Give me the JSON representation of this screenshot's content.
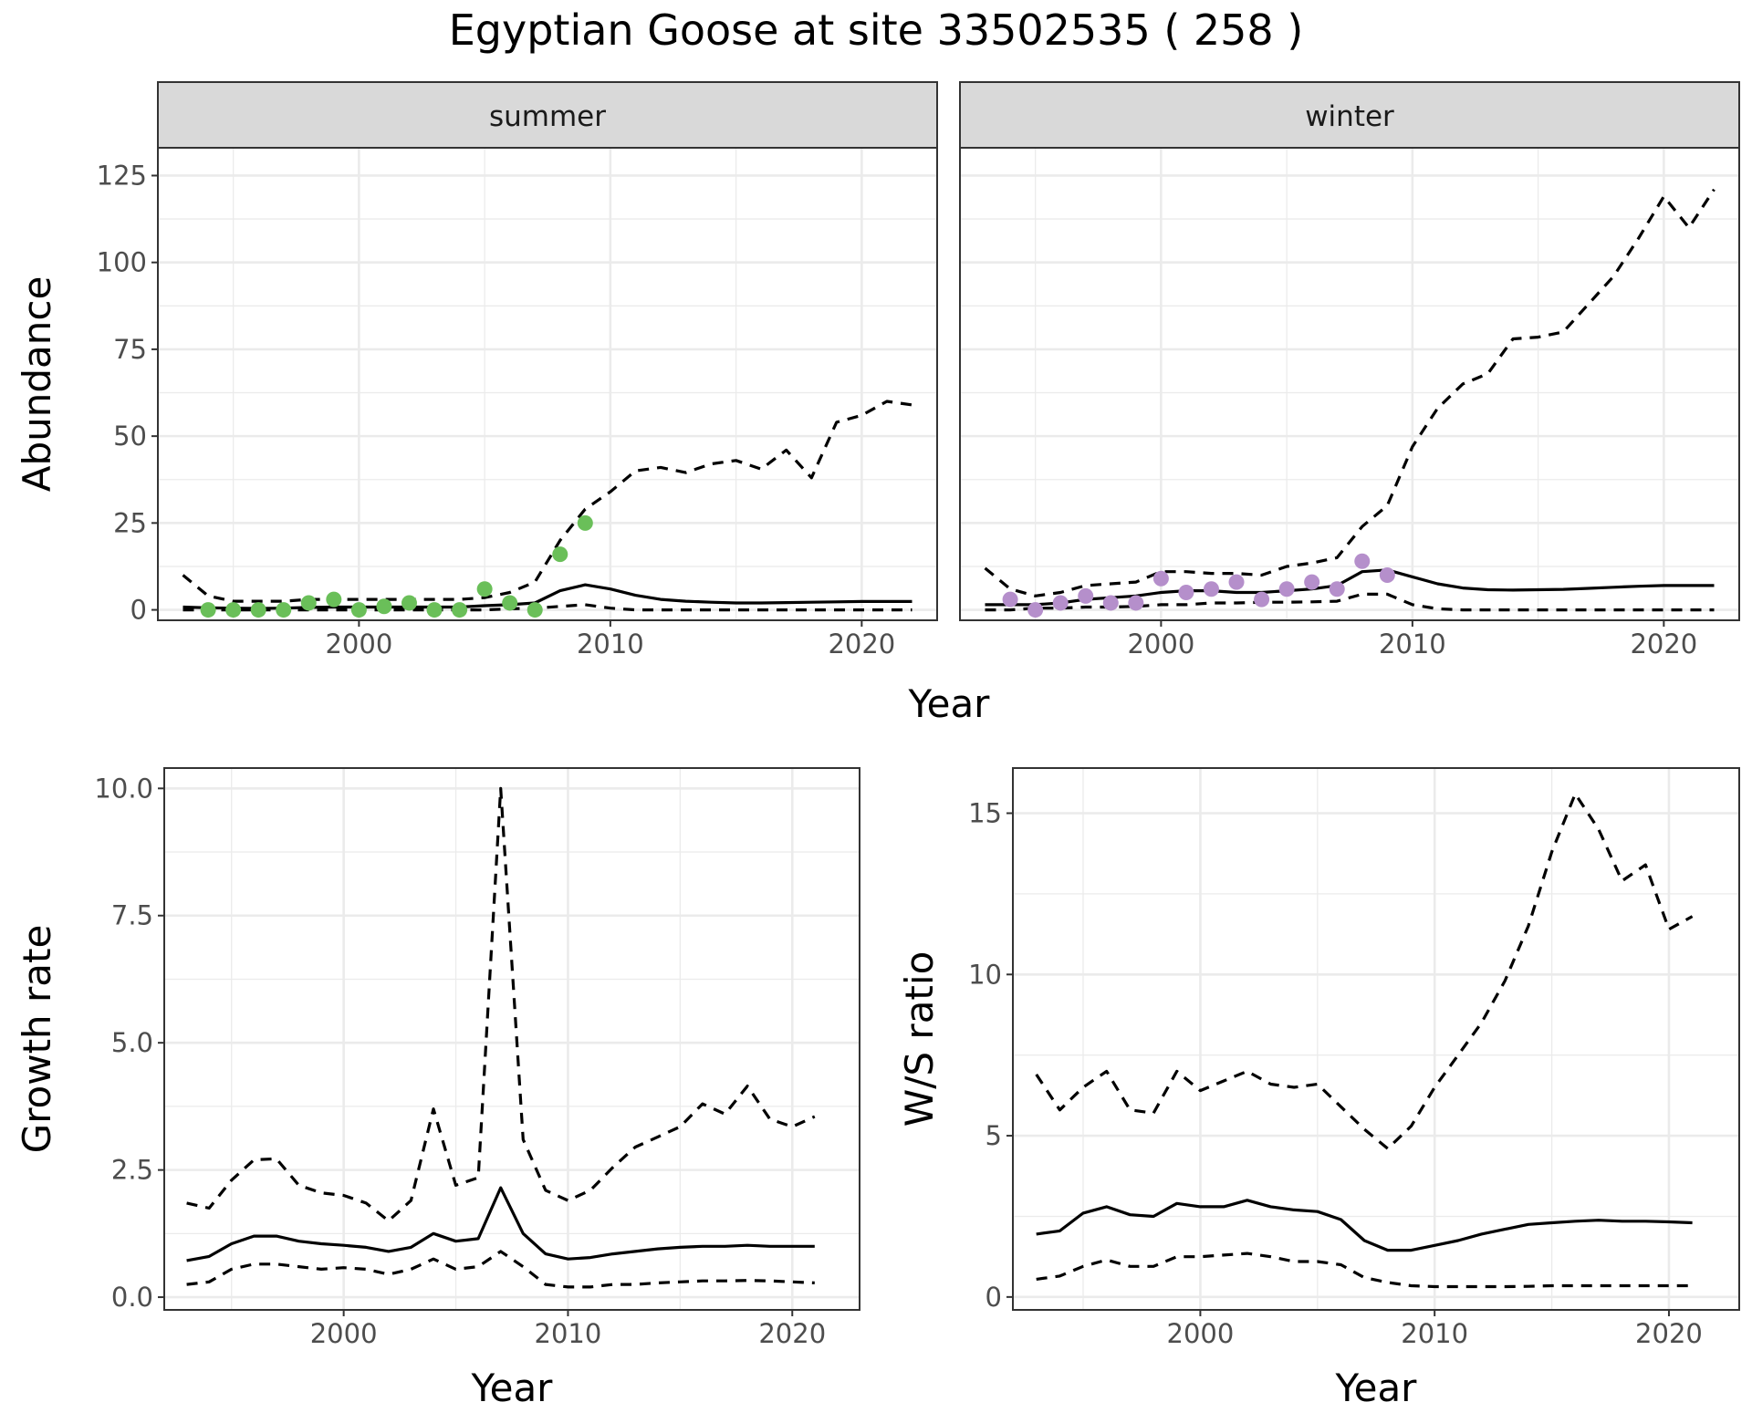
{
  "title": "Egyptian Goose at site 33502535 ( 258 )",
  "colors": {
    "summer_points": "#6abf59",
    "winter_points": "#b58fcb",
    "strip_fill": "#d9d9d9",
    "grid": "#ebebeb",
    "line": "#000000"
  },
  "chart_data": [
    {
      "id": "abundance",
      "type": "line",
      "facets": [
        "summer",
        "winter"
      ],
      "xlabel": "Year",
      "ylabel": "Abundance",
      "xlim": [
        1992,
        2023
      ],
      "ylim": [
        -3,
        133
      ],
      "xticks": [
        2000,
        2010,
        2020
      ],
      "yticks": [
        0,
        25,
        50,
        75,
        100,
        125
      ],
      "grid": true,
      "panels": [
        {
          "facet": "summer",
          "point_color": "#6abf59",
          "points": {
            "x": [
              1994,
              1995,
              1996,
              1997,
              1998,
              1999,
              2000,
              2001,
              2002,
              2003,
              2004,
              2005,
              2006,
              2007,
              2008,
              2009
            ],
            "y": [
              0,
              0,
              0,
              0,
              2,
              3,
              0,
              1,
              2,
              0,
              0,
              6,
              2,
              0,
              16,
              25
            ]
          },
          "series": [
            {
              "role": "estimate",
              "style": "solid",
              "x": [
                1993,
                1994,
                1995,
                1996,
                1997,
                1998,
                1999,
                2000,
                2001,
                2002,
                2003,
                2004,
                2005,
                2006,
                2007,
                2008,
                2009,
                2010,
                2011,
                2012,
                2013,
                2014,
                2015,
                2016,
                2017,
                2018,
                2019,
                2020,
                2021,
                2022
              ],
              "y": [
                0.8,
                0.6,
                0.5,
                0.4,
                0.5,
                0.7,
                0.8,
                0.8,
                0.8,
                0.8,
                0.8,
                0.8,
                1.2,
                1.5,
                2.0,
                5.5,
                7.2,
                6.0,
                4.2,
                3.0,
                2.5,
                2.2,
                2.0,
                2.0,
                2.1,
                2.2,
                2.3,
                2.4,
                2.4,
                2.4
              ]
            },
            {
              "role": "upper",
              "style": "dashed",
              "x": [
                1993,
                1994,
                1995,
                1996,
                1997,
                1998,
                1999,
                2000,
                2001,
                2002,
                2003,
                2004,
                2005,
                2006,
                2007,
                2008,
                2009,
                2010,
                2011,
                2012,
                2013,
                2014,
                2015,
                2016,
                2017,
                2018,
                2019,
                2020,
                2021,
                2022
              ],
              "y": [
                10,
                4,
                2.5,
                2.5,
                2.5,
                3,
                3,
                3,
                3,
                3,
                3,
                3,
                3.5,
                5,
                8,
                20,
                29,
                34,
                40,
                41,
                39.5,
                42,
                43,
                40.5,
                46,
                38,
                54,
                56,
                60,
                59
              ]
            },
            {
              "role": "lower",
              "style": "dashed",
              "x": [
                1993,
                1994,
                1995,
                1996,
                1997,
                1998,
                1999,
                2000,
                2001,
                2002,
                2003,
                2004,
                2005,
                2006,
                2007,
                2008,
                2009,
                2010,
                2011,
                2012,
                2013,
                2014,
                2015,
                2016,
                2017,
                2018,
                2019,
                2020,
                2021,
                2022
              ],
              "y": [
                0,
                0,
                0,
                0,
                0,
                0,
                0,
                0,
                0,
                0,
                0,
                0,
                0,
                0.3,
                0.5,
                1.0,
                1.5,
                0.5,
                0,
                0,
                0,
                0,
                0,
                0,
                0,
                0,
                0,
                0,
                0,
                0
              ]
            }
          ]
        },
        {
          "facet": "winter",
          "point_color": "#b58fcb",
          "points": {
            "x": [
              1994,
              1995,
              1996,
              1997,
              1998,
              1999,
              2000,
              2001,
              2002,
              2003,
              2004,
              2005,
              2006,
              2007,
              2008,
              2009
            ],
            "y": [
              3,
              0,
              2,
              4,
              2,
              2,
              9,
              5,
              6,
              8,
              3,
              6,
              8,
              6,
              14,
              10
            ]
          },
          "series": [
            {
              "role": "estimate",
              "style": "solid",
              "x": [
                1993,
                1994,
                1995,
                1996,
                1997,
                1998,
                1999,
                2000,
                2001,
                2002,
                2003,
                2004,
                2005,
                2006,
                2007,
                2008,
                2009,
                2010,
                2011,
                2012,
                2013,
                2014,
                2015,
                2016,
                2017,
                2018,
                2019,
                2020,
                2021,
                2022
              ],
              "y": [
                1.5,
                1.5,
                1.5,
                2,
                3,
                3.5,
                4,
                5,
                5.5,
                5.5,
                5,
                5,
                5.5,
                6,
                7,
                11,
                11.5,
                9.5,
                7.5,
                6.3,
                5.8,
                5.7,
                5.8,
                5.9,
                6.2,
                6.5,
                6.8,
                7,
                7,
                7
              ]
            },
            {
              "role": "upper",
              "style": "dashed",
              "x": [
                1993,
                1994,
                1995,
                1996,
                1997,
                1998,
                1999,
                2000,
                2001,
                2002,
                2003,
                2004,
                2005,
                2006,
                2007,
                2008,
                2009,
                2010,
                2011,
                2012,
                2013,
                2014,
                2015,
                2016,
                2017,
                2018,
                2019,
                2020,
                2021,
                2022
              ],
              "y": [
                12,
                6,
                4,
                5,
                7,
                7.5,
                8,
                11,
                11,
                10.5,
                10.5,
                10,
                12.5,
                13.5,
                15,
                24,
                30,
                47,
                58,
                65,
                68,
                78,
                78.5,
                80,
                88,
                96,
                107,
                119,
                110,
                121
              ]
            },
            {
              "role": "lower",
              "style": "dashed",
              "x": [
                1993,
                1994,
                1995,
                1996,
                1997,
                1998,
                1999,
                2000,
                2001,
                2002,
                2003,
                2004,
                2005,
                2006,
                2007,
                2008,
                2009,
                2010,
                2011,
                2012,
                2013,
                2014,
                2015,
                2016,
                2017,
                2018,
                2019,
                2020,
                2021,
                2022
              ],
              "y": [
                0,
                0,
                0.5,
                0.5,
                0.8,
                0.8,
                1,
                1.5,
                1.5,
                2,
                2,
                2.2,
                2.2,
                2.3,
                2.5,
                4.5,
                4.5,
                1.5,
                0.3,
                0,
                0,
                0,
                0,
                0,
                0,
                0,
                0,
                0,
                0,
                0
              ]
            }
          ]
        }
      ]
    },
    {
      "id": "growth",
      "type": "line",
      "xlabel": "Year",
      "ylabel": "Growth rate",
      "xlim": [
        1992,
        2023
      ],
      "ylim": [
        -0.25,
        10.4
      ],
      "xticks": [
        2000,
        2010,
        2020
      ],
      "yticks": [
        0.0,
        2.5,
        5.0,
        7.5,
        10.0
      ],
      "ytick_labels": [
        "0.0",
        "2.5",
        "5.0",
        "7.5",
        "10.0"
      ],
      "grid": true,
      "series": [
        {
          "role": "estimate",
          "style": "solid",
          "x": [
            1993,
            1994,
            1995,
            1996,
            1997,
            1998,
            1999,
            2000,
            2001,
            2002,
            2003,
            2004,
            2005,
            2006,
            2007,
            2008,
            2009,
            2010,
            2011,
            2012,
            2013,
            2014,
            2015,
            2016,
            2017,
            2018,
            2019,
            2020,
            2021
          ],
          "y": [
            0.72,
            0.8,
            1.05,
            1.2,
            1.2,
            1.1,
            1.05,
            1.02,
            0.98,
            0.9,
            0.98,
            1.25,
            1.1,
            1.15,
            2.15,
            1.25,
            0.85,
            0.75,
            0.78,
            0.85,
            0.9,
            0.95,
            0.98,
            1.0,
            1.0,
            1.02,
            1.0,
            1.0,
            1.0
          ]
        },
        {
          "role": "upper",
          "style": "dashed",
          "x": [
            1993,
            1994,
            1995,
            1996,
            1997,
            1998,
            1999,
            2000,
            2001,
            2002,
            2003,
            2004,
            2005,
            2006,
            2007,
            2008,
            2009,
            2010,
            2011,
            2012,
            2013,
            2014,
            2015,
            2016,
            2017,
            2018,
            2019,
            2020,
            2021
          ],
          "y": [
            1.85,
            1.75,
            2.3,
            2.7,
            2.72,
            2.2,
            2.05,
            2.0,
            1.85,
            1.5,
            1.9,
            3.7,
            2.2,
            2.35,
            10.0,
            3.1,
            2.1,
            1.9,
            2.1,
            2.55,
            2.95,
            3.15,
            3.35,
            3.8,
            3.6,
            4.15,
            3.5,
            3.35,
            3.55
          ]
        },
        {
          "role": "lower",
          "style": "dashed",
          "x": [
            1993,
            1994,
            1995,
            1996,
            1997,
            1998,
            1999,
            2000,
            2001,
            2002,
            2003,
            2004,
            2005,
            2006,
            2007,
            2008,
            2009,
            2010,
            2011,
            2012,
            2013,
            2014,
            2015,
            2016,
            2017,
            2018,
            2019,
            2020,
            2021
          ],
          "y": [
            0.25,
            0.3,
            0.55,
            0.65,
            0.65,
            0.6,
            0.55,
            0.58,
            0.55,
            0.45,
            0.55,
            0.75,
            0.55,
            0.6,
            0.9,
            0.6,
            0.25,
            0.2,
            0.2,
            0.25,
            0.25,
            0.28,
            0.3,
            0.32,
            0.32,
            0.33,
            0.32,
            0.3,
            0.28
          ]
        }
      ]
    },
    {
      "id": "ws_ratio",
      "type": "line",
      "xlabel": "Year",
      "ylabel": "W/S ratio",
      "xlim": [
        1992,
        2023
      ],
      "ylim": [
        -0.4,
        16.4
      ],
      "xticks": [
        2000,
        2010,
        2020
      ],
      "yticks": [
        0,
        5,
        10,
        15
      ],
      "grid": true,
      "series": [
        {
          "role": "estimate",
          "style": "solid",
          "x": [
            1993,
            1994,
            1995,
            1996,
            1997,
            1998,
            1999,
            2000,
            2001,
            2002,
            2003,
            2004,
            2005,
            2006,
            2007,
            2008,
            2009,
            2010,
            2011,
            2012,
            2013,
            2014,
            2015,
            2016,
            2017,
            2018,
            2019,
            2020,
            2021
          ],
          "y": [
            1.95,
            2.05,
            2.6,
            2.8,
            2.55,
            2.5,
            2.9,
            2.8,
            2.8,
            3.0,
            2.8,
            2.7,
            2.65,
            2.4,
            1.75,
            1.45,
            1.45,
            1.6,
            1.75,
            1.95,
            2.1,
            2.25,
            2.3,
            2.35,
            2.38,
            2.35,
            2.35,
            2.33,
            2.3
          ]
        },
        {
          "role": "upper",
          "style": "dashed",
          "x": [
            1993,
            1994,
            1995,
            1996,
            1997,
            1998,
            1999,
            2000,
            2001,
            2002,
            2003,
            2004,
            2005,
            2006,
            2007,
            2008,
            2009,
            2010,
            2011,
            2012,
            2013,
            2014,
            2015,
            2016,
            2017,
            2018,
            2019,
            2020,
            2021
          ],
          "y": [
            6.9,
            5.8,
            6.5,
            7.0,
            5.8,
            5.7,
            7.0,
            6.4,
            6.7,
            7.0,
            6.6,
            6.5,
            6.6,
            5.9,
            5.2,
            4.6,
            5.3,
            6.5,
            7.5,
            8.5,
            9.8,
            11.5,
            13.8,
            15.6,
            14.5,
            12.9,
            13.4,
            11.4,
            11.8
          ]
        },
        {
          "role": "lower",
          "style": "dashed",
          "x": [
            1993,
            1994,
            1995,
            1996,
            1997,
            1998,
            1999,
            2000,
            2001,
            2002,
            2003,
            2004,
            2005,
            2006,
            2007,
            2008,
            2009,
            2010,
            2011,
            2012,
            2013,
            2014,
            2015,
            2016,
            2017,
            2018,
            2019,
            2020,
            2021
          ],
          "y": [
            0.55,
            0.65,
            0.95,
            1.15,
            0.95,
            0.95,
            1.25,
            1.25,
            1.3,
            1.35,
            1.25,
            1.1,
            1.1,
            1.0,
            0.6,
            0.45,
            0.35,
            0.32,
            0.32,
            0.32,
            0.32,
            0.33,
            0.35,
            0.35,
            0.35,
            0.35,
            0.35,
            0.35,
            0.35
          ]
        }
      ]
    }
  ]
}
